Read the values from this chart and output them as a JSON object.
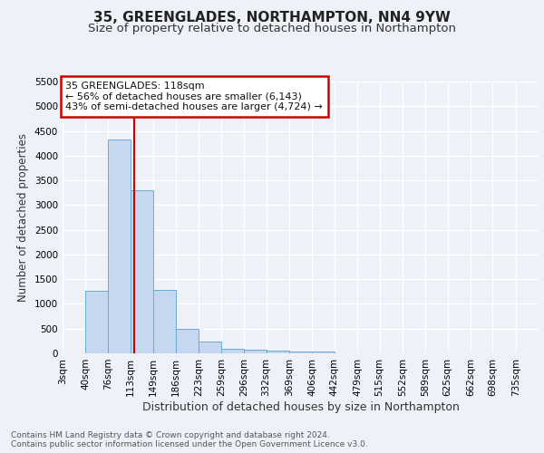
{
  "title": "35, GREENGLADES, NORTHAMPTON, NN4 9YW",
  "subtitle": "Size of property relative to detached houses in Northampton",
  "xlabel": "Distribution of detached houses by size in Northampton",
  "ylabel": "Number of detached properties",
  "categories": [
    "3sqm",
    "40sqm",
    "76sqm",
    "113sqm",
    "149sqm",
    "186sqm",
    "223sqm",
    "259sqm",
    "296sqm",
    "332sqm",
    "369sqm",
    "406sqm",
    "442sqm",
    "479sqm",
    "515sqm",
    "552sqm",
    "589sqm",
    "625sqm",
    "662sqm",
    "698sqm",
    "735sqm"
  ],
  "values": [
    0,
    1270,
    4330,
    3300,
    1280,
    490,
    235,
    90,
    75,
    55,
    40,
    30,
    0,
    0,
    0,
    0,
    0,
    0,
    0,
    0,
    0
  ],
  "bar_color": "#c5d8f0",
  "bar_edge_color": "#6aaad4",
  "vline_x": 118,
  "vline_color": "#cc0000",
  "ylim": [
    0,
    5500
  ],
  "yticks": [
    0,
    500,
    1000,
    1500,
    2000,
    2500,
    3000,
    3500,
    4000,
    4500,
    5000,
    5500
  ],
  "annotation_text": "35 GREENGLADES: 118sqm\n← 56% of detached houses are smaller (6,143)\n43% of semi-detached houses are larger (4,724) →",
  "annotation_box_color": "#ffffff",
  "annotation_box_edge": "#cc0000",
  "footer": "Contains HM Land Registry data © Crown copyright and database right 2024.\nContains public sector information licensed under the Open Government Licence v3.0.",
  "title_fontsize": 11,
  "subtitle_fontsize": 9.5,
  "xlabel_fontsize": 9,
  "ylabel_fontsize": 8.5,
  "tick_fontsize": 7.5,
  "annotation_fontsize": 8,
  "footer_fontsize": 6.5,
  "background_color": "#eef2f8",
  "plot_bg_color": "#eef2f8",
  "grid_color": "#ffffff",
  "bin_edges": [
    3,
    40,
    76,
    113,
    149,
    186,
    223,
    259,
    296,
    332,
    369,
    406,
    442,
    479,
    515,
    552,
    589,
    625,
    662,
    698,
    735,
    772
  ]
}
